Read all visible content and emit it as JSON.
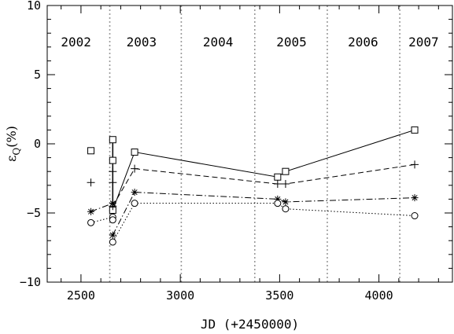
{
  "chart_data": {
    "type": "line",
    "xlabel": "JD (+2450000)",
    "ylabel": {
      "symbol": "ε",
      "subscript": "Q",
      "unit": "(%)"
    },
    "xlim": [
      2330,
      4370
    ],
    "ylim": [
      -10,
      10
    ],
    "xticks": [
      2500,
      3000,
      3500,
      4000
    ],
    "yticks": [
      -10,
      -5,
      0,
      5,
      10
    ],
    "grid": false,
    "year_boundaries": [
      2645,
      3005,
      3375,
      3740,
      4105
    ],
    "year_labels": [
      {
        "label": "2002",
        "x": 2475
      },
      {
        "label": "2003",
        "x": 2805
      },
      {
        "label": "2004",
        "x": 3190
      },
      {
        "label": "2005",
        "x": 3560
      },
      {
        "label": "2006",
        "x": 3920
      },
      {
        "label": "2007",
        "x": 4225
      }
    ],
    "series": [
      {
        "marker": "square",
        "line": "solid",
        "points": [
          [
            2550,
            -0.5
          ],
          [
            2660,
            0.3
          ],
          [
            2660,
            -1.2
          ],
          [
            2660,
            -4.8
          ],
          [
            2770,
            -0.6
          ],
          [
            3490,
            -2.4
          ],
          [
            3530,
            -2.0
          ],
          [
            4180,
            1.0
          ]
        ],
        "line_path": [
          [
            2660,
            -4.8
          ],
          [
            2770,
            -0.6
          ],
          [
            3490,
            -2.4
          ],
          [
            3530,
            -2.0
          ],
          [
            4180,
            1.0
          ]
        ],
        "extra_segments": [
          [
            [
              2660,
              0.3
            ],
            [
              2660,
              -4.8
            ]
          ]
        ]
      },
      {
        "marker": "plus",
        "line": "dashed",
        "points": [
          [
            2550,
            -2.8
          ],
          [
            2660,
            -2.0
          ],
          [
            2660,
            -2.8
          ],
          [
            2660,
            -4.5
          ],
          [
            2770,
            -1.8
          ],
          [
            3490,
            -2.9
          ],
          [
            3530,
            -2.9
          ],
          [
            4180,
            -1.5
          ]
        ],
        "line_path": [
          [
            2660,
            -4.5
          ],
          [
            2770,
            -1.8
          ],
          [
            3490,
            -2.9
          ],
          [
            3530,
            -2.9
          ],
          [
            4180,
            -1.5
          ]
        ],
        "extra_segments": []
      },
      {
        "marker": "asterisk",
        "line": "dashdot",
        "points": [
          [
            2550,
            -4.9
          ],
          [
            2660,
            -4.3
          ],
          [
            2660,
            -6.6
          ],
          [
            2770,
            -3.5
          ],
          [
            3490,
            -4.0
          ],
          [
            3530,
            -4.2
          ],
          [
            4180,
            -3.9
          ]
        ],
        "line_path": [
          [
            2660,
            -6.6
          ],
          [
            2770,
            -3.5
          ],
          [
            3490,
            -4.0
          ],
          [
            3530,
            -4.2
          ],
          [
            4180,
            -3.9
          ]
        ],
        "extra_segments": [
          [
            [
              2550,
              -4.9
            ],
            [
              2660,
              -4.3
            ]
          ]
        ]
      },
      {
        "marker": "circle",
        "line": "dotted",
        "points": [
          [
            2550,
            -5.7
          ],
          [
            2660,
            -5.3
          ],
          [
            2660,
            -5.5
          ],
          [
            2660,
            -7.1
          ],
          [
            2770,
            -4.3
          ],
          [
            3490,
            -4.3
          ],
          [
            3530,
            -4.7
          ],
          [
            4180,
            -5.2
          ]
        ],
        "line_path": [
          [
            2660,
            -7.1
          ],
          [
            2770,
            -4.3
          ],
          [
            3490,
            -4.3
          ],
          [
            3530,
            -4.7
          ],
          [
            4180,
            -5.2
          ]
        ],
        "extra_segments": [
          [
            [
              2550,
              -5.7
            ],
            [
              2660,
              -5.3
            ]
          ]
        ]
      }
    ]
  }
}
